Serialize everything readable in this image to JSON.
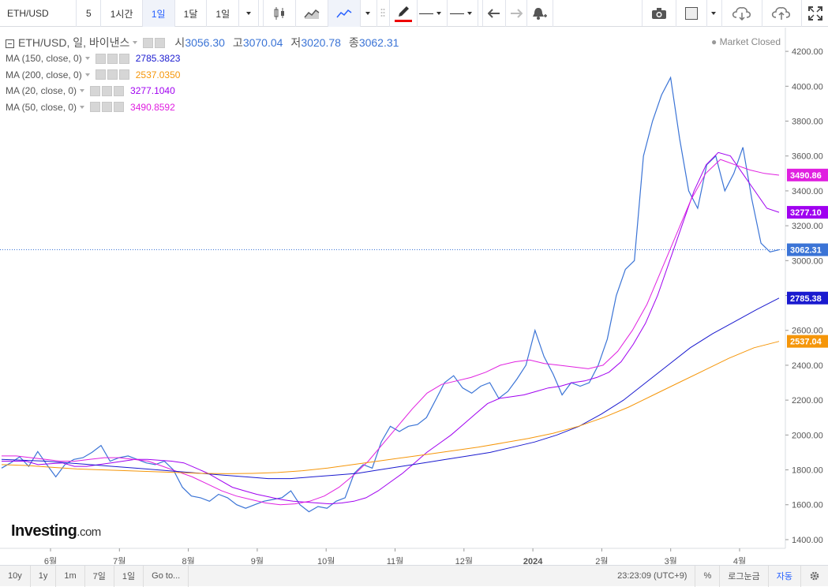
{
  "toolbar": {
    "symbol": "ETH/USD",
    "interval_items": [
      "5",
      "1시간",
      "1일",
      "1달",
      "1일"
    ],
    "active_interval": 2
  },
  "legend": {
    "symbol_label": "ETH/USD, 일, 바이낸스",
    "open_label": "시",
    "open": "3056.30",
    "high_label": "고",
    "high": "3070.04",
    "low_label": "저",
    "low": "3020.78",
    "close_label": "종",
    "close": "3062.31",
    "market_status": "Market Closed"
  },
  "mas": [
    {
      "label": "MA (150, close, 0)",
      "value": "2785.3823",
      "color": "#1a1acf"
    },
    {
      "label": "MA (200, close, 0)",
      "value": "2537.0350",
      "color": "#f5960a"
    },
    {
      "label": "MA (20, close, 0)",
      "value": "3277.1040",
      "color": "#a000f0"
    },
    {
      "label": "MA (50, close, 0)",
      "value": "3490.8592",
      "color": "#e020e0"
    }
  ],
  "price_axis_ticks": [
    "4200.00",
    "4000.00",
    "3800.00",
    "3600.00",
    "3400.00",
    "3200.00",
    "3000.00",
    "2800.00",
    "2600.00",
    "2400.00",
    "2200.00",
    "2000.00",
    "1800.00",
    "1600.00",
    "1400.00"
  ],
  "price_tags": [
    {
      "value": "3490.86",
      "color": "#e020e0"
    },
    {
      "value": "3277.10",
      "color": "#a000f0"
    },
    {
      "value": "3062.31",
      "color": "#3b74d6"
    },
    {
      "value": "2785.38",
      "color": "#1a1acf"
    },
    {
      "value": "2537.04",
      "color": "#f5960a"
    }
  ],
  "time_axis_labels": [
    "6월",
    "7월",
    "8월",
    "9월",
    "10월",
    "11월",
    "12월",
    "2024",
    "2월",
    "3월",
    "4월"
  ],
  "logo": {
    "brand": "Investing",
    "suffix": ".com"
  },
  "bottom": {
    "ranges": [
      "10y",
      "1y",
      "1m",
      "7일",
      "1일"
    ],
    "goto": "Go to...",
    "clock": "23:23:09 (UTC+9)",
    "percent": "%",
    "log": "로그눈금",
    "auto": "자동"
  },
  "chart_data": {
    "type": "line",
    "title": "ETH/USD, 일, 바이낸스",
    "ylim": [
      1350,
      4300
    ],
    "x_labels": [
      "6월",
      "7월",
      "8월",
      "9월",
      "10월",
      "11월",
      "12월",
      "2024",
      "2월",
      "3월",
      "4월"
    ],
    "series": [
      {
        "name": "ETH/USD",
        "color": "#3b74d6",
        "values": [
          1810,
          1840,
          1875,
          1820,
          1905,
          1830,
          1760,
          1830,
          1860,
          1870,
          1900,
          1940,
          1850,
          1870,
          1880,
          1860,
          1840,
          1830,
          1850,
          1800,
          1700,
          1650,
          1640,
          1620,
          1660,
          1640,
          1600,
          1580,
          1600,
          1620,
          1630,
          1640,
          1680,
          1600,
          1560,
          1590,
          1580,
          1620,
          1640,
          1780,
          1830,
          1810,
          1960,
          2050,
          2020,
          2050,
          2060,
          2100,
          2200,
          2300,
          2340,
          2270,
          2240,
          2280,
          2300,
          2210,
          2250,
          2320,
          2400,
          2600,
          2450,
          2350,
          2230,
          2300,
          2280,
          2300,
          2400,
          2550,
          2800,
          2950,
          3000,
          3600,
          3800,
          3950,
          4050,
          3700,
          3400,
          3300,
          3550,
          3600,
          3400,
          3500,
          3650,
          3350,
          3100,
          3050,
          3062
        ]
      },
      {
        "name": "MA (20, close, 0)",
        "color": "#a000f0",
        "values": [
          1850,
          1850,
          1850,
          1830,
          1835,
          1840,
          1820,
          1820,
          1830,
          1840,
          1850,
          1860,
          1860,
          1855,
          1850,
          1840,
          1810,
          1780,
          1740,
          1700,
          1680,
          1660,
          1645,
          1630,
          1620,
          1615,
          1610,
          1605,
          1610,
          1620,
          1640,
          1680,
          1730,
          1780,
          1840,
          1900,
          1950,
          2000,
          2060,
          2120,
          2180,
          2210,
          2220,
          2230,
          2250,
          2270,
          2280,
          2300,
          2310,
          2330,
          2360,
          2420,
          2520,
          2640,
          2800,
          3000,
          3200,
          3400,
          3550,
          3620,
          3600,
          3500,
          3400,
          3300,
          3277
        ]
      },
      {
        "name": "MA (50, close, 0)",
        "color": "#e020e0",
        "values": [
          1880,
          1880,
          1870,
          1860,
          1850,
          1850,
          1860,
          1870,
          1870,
          1860,
          1850,
          1820,
          1790,
          1760,
          1720,
          1680,
          1650,
          1630,
          1610,
          1600,
          1605,
          1620,
          1650,
          1700,
          1770,
          1850,
          1950,
          2050,
          2150,
          2240,
          2290,
          2310,
          2330,
          2360,
          2400,
          2420,
          2430,
          2410,
          2400,
          2390,
          2380,
          2400,
          2480,
          2600,
          2750,
          2950,
          3150,
          3350,
          3500,
          3580,
          3550,
          3520,
          3500,
          3490
        ]
      },
      {
        "name": "MA (150, close, 0)",
        "color": "#1a1acf",
        "values": [
          1860,
          1855,
          1850,
          1840,
          1830,
          1820,
          1810,
          1800,
          1790,
          1780,
          1770,
          1760,
          1750,
          1750,
          1760,
          1770,
          1780,
          1800,
          1820,
          1840,
          1860,
          1880,
          1900,
          1930,
          1960,
          2000,
          2050,
          2120,
          2200,
          2300,
          2400,
          2500,
          2580,
          2650,
          2720,
          2785
        ]
      },
      {
        "name": "MA (200, close, 0)",
        "color": "#f5960a",
        "values": [
          1830,
          1825,
          1815,
          1805,
          1800,
          1795,
          1790,
          1785,
          1780,
          1778,
          1780,
          1785,
          1795,
          1810,
          1830,
          1850,
          1870,
          1890,
          1910,
          1930,
          1955,
          1980,
          2010,
          2050,
          2100,
          2160,
          2230,
          2300,
          2370,
          2440,
          2500,
          2537
        ]
      }
    ]
  }
}
